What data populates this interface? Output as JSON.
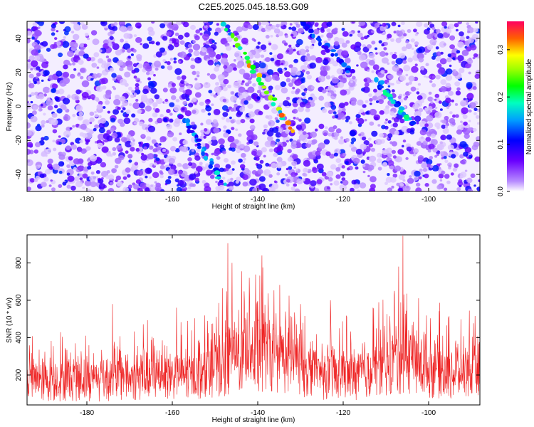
{
  "title": "C2E5.2025.045.18.53.G09",
  "chart_data": [
    {
      "type": "heatmap",
      "xlabel": "Height of straight line (km)",
      "ylabel": "Frequency (Hz)",
      "xlim": [
        -194,
        -88
      ],
      "ylim": [
        -50,
        50
      ],
      "xticks": [
        -180,
        -160,
        -140,
        -120,
        -100
      ],
      "yticks": [
        -40,
        -20,
        0,
        20,
        40
      ],
      "colorbar": {
        "label": "Normalized spectral amplitude",
        "range": [
          0,
          0.36
        ],
        "ticks": [
          0.0,
          0.1,
          0.2,
          0.3
        ]
      },
      "features": [
        {
          "name": "",
          "x_start": -148,
          "y_start": 50,
          "x_end": -132,
          "y_end": -15,
          "peak_amplitude": 0.33
        },
        {
          "name": "",
          "x_start": -158,
          "y_start": -5,
          "x_end": -148,
          "y_end": -45,
          "peak_amplitude": 0.18
        },
        {
          "name": "",
          "x_start": -130,
          "y_start": 50,
          "x_end": -118,
          "y_end": 20,
          "peak_amplitude": 0.14
        },
        {
          "name": "",
          "x_start": -112,
          "y_start": 15,
          "x_end": -104,
          "y_end": -10,
          "peak_amplitude": 0.2
        }
      ]
    },
    {
      "type": "line",
      "xlabel": "Height of straight line (km)",
      "ylabel": "SNR (10 * v/v)",
      "xlim": [
        -194,
        -88
      ],
      "ylim": [
        40,
        950
      ],
      "xticks": [
        -180,
        -160,
        -140,
        -120,
        -100
      ],
      "yticks": [
        200,
        400,
        600,
        800
      ],
      "color": "#ee2222",
      "baseline_profile": [
        {
          "x": -194,
          "y": 160
        },
        {
          "x": -180,
          "y": 165
        },
        {
          "x": -165,
          "y": 175
        },
        {
          "x": -155,
          "y": 185
        },
        {
          "x": -150,
          "y": 220
        },
        {
          "x": -145,
          "y": 280
        },
        {
          "x": -140,
          "y": 300
        },
        {
          "x": -135,
          "y": 285
        },
        {
          "x": -130,
          "y": 230
        },
        {
          "x": -125,
          "y": 185
        },
        {
          "x": -118,
          "y": 185
        },
        {
          "x": -112,
          "y": 215
        },
        {
          "x": -106,
          "y": 270
        },
        {
          "x": -100,
          "y": 215
        },
        {
          "x": -95,
          "y": 195
        },
        {
          "x": -88,
          "y": 185
        }
      ],
      "peaks": [
        {
          "x": -147,
          "y": 905
        },
        {
          "x": -146,
          "y": 800
        },
        {
          "x": -139,
          "y": 840
        },
        {
          "x": -142,
          "y": 720
        },
        {
          "x": -106,
          "y": 945
        },
        {
          "x": -107,
          "y": 780
        },
        {
          "x": -108,
          "y": 650
        },
        {
          "x": -174,
          "y": 580
        },
        {
          "x": -159,
          "y": 560
        },
        {
          "x": -123,
          "y": 600
        },
        {
          "x": -113,
          "y": 560
        },
        {
          "x": -130,
          "y": 580
        }
      ]
    }
  ]
}
